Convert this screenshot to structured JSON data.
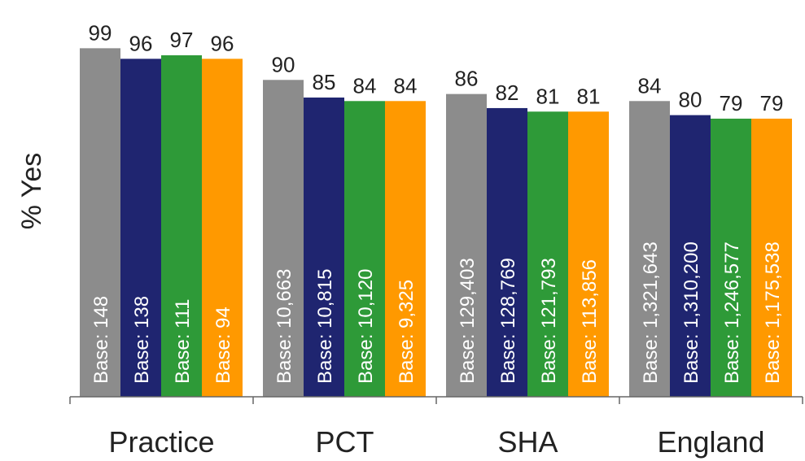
{
  "chart_data": {
    "type": "bar",
    "ylabel": "% Yes",
    "ylim": [
      0,
      100
    ],
    "grid": false,
    "categories": [
      "Practice",
      "PCT",
      "SHA",
      "England"
    ],
    "series": [
      {
        "color": "#8c8c8c",
        "values": [
          99,
          90,
          86,
          84
        ],
        "base_labels": [
          "Base: 148",
          "Base: 10,663",
          "Base: 129,403",
          "Base: 1,321,643"
        ]
      },
      {
        "color": "#1f2570",
        "values": [
          96,
          85,
          82,
          80
        ],
        "base_labels": [
          "Base: 138",
          "Base: 10,815",
          "Base: 128,769",
          "Base: 1,310,200"
        ]
      },
      {
        "color": "#2e9a38",
        "values": [
          97,
          84,
          81,
          79
        ],
        "base_labels": [
          "Base: 111",
          "Base: 10,120",
          "Base: 121,793",
          "Base: 1,246,577"
        ]
      },
      {
        "color": "#ff9900",
        "values": [
          96,
          84,
          81,
          79
        ],
        "base_labels": [
          "Base: 94",
          "Base: 9,325",
          "Base: 113,856",
          "Base: 1,175,538"
        ]
      }
    ]
  }
}
